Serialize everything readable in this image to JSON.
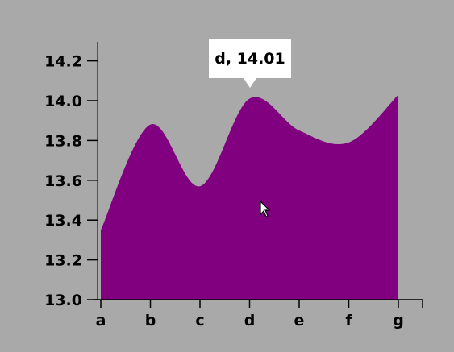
{
  "colors": {
    "background": "#a9a9a9",
    "area_fill": "#800080",
    "axis": "#000000"
  },
  "tooltip": {
    "text": "d, 14.01"
  },
  "cursor": {
    "icon": "mouse-pointer-icon"
  },
  "chart_data": {
    "type": "area",
    "categories": [
      "a",
      "b",
      "c",
      "d",
      "e",
      "f",
      "g"
    ],
    "series": [
      {
        "values": [
          13.35,
          13.88,
          13.57,
          14.01,
          13.85,
          13.79,
          14.03
        ]
      }
    ],
    "ylim": [
      13.0,
      14.3
    ],
    "yticks": [
      "13.0",
      "13.2",
      "13.4",
      "13.6",
      "13.8",
      "14.0",
      "14.2"
    ],
    "grid": false,
    "smooth": true
  }
}
